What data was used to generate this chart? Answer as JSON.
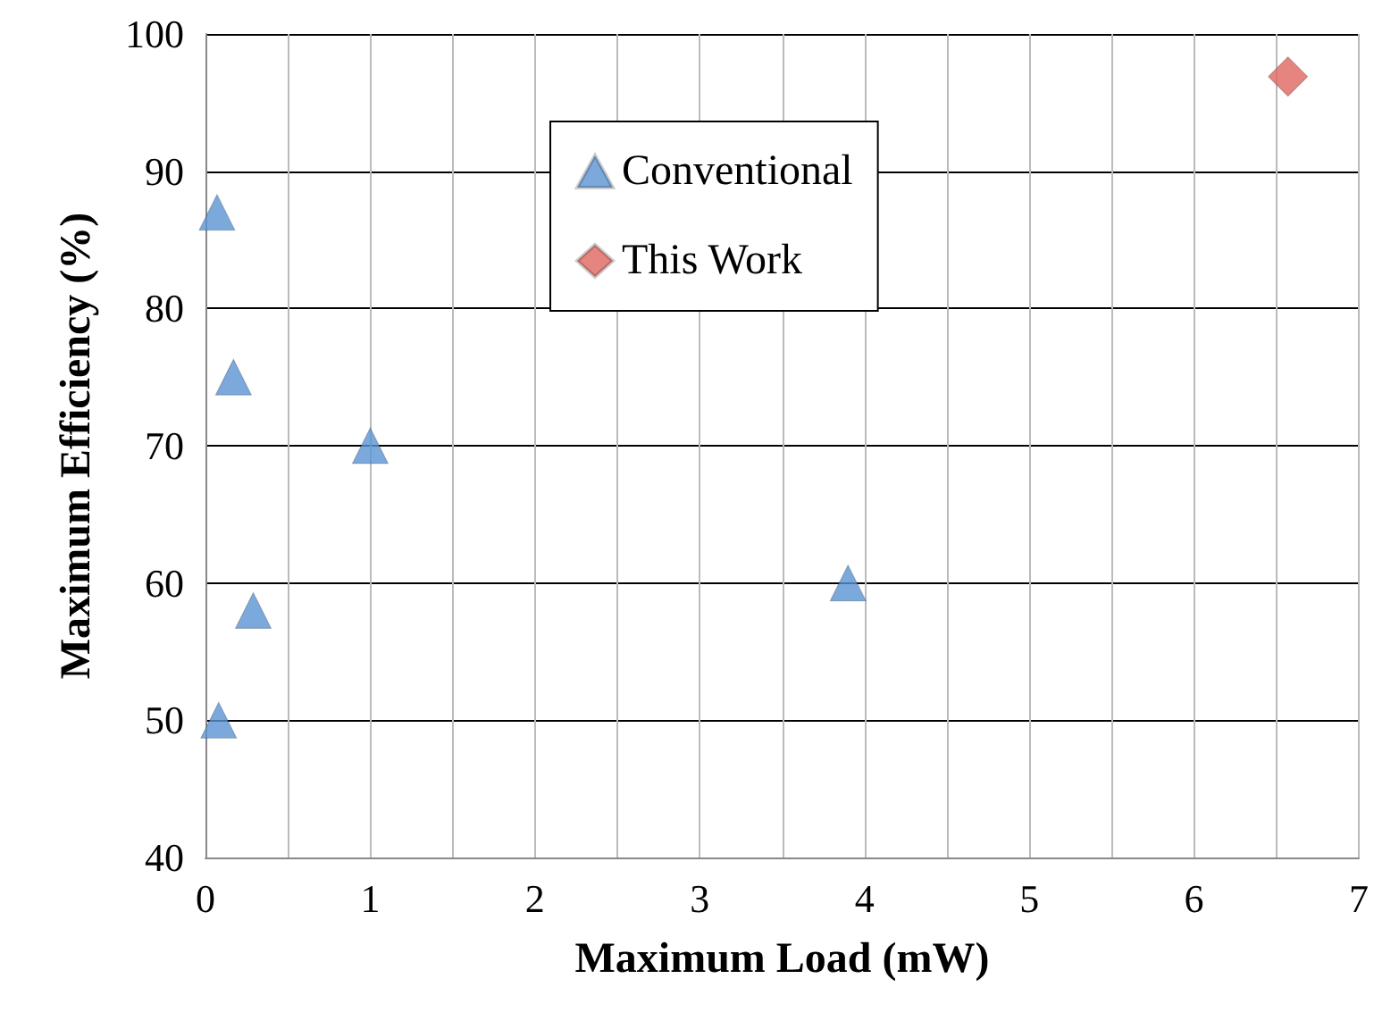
{
  "chart_data": {
    "type": "scatter",
    "xlabel": "Maximum Load (mW)",
    "ylabel": "Maximum Efficiency (%)",
    "series": [
      {
        "name": "Conventional",
        "color": "#5b93d3",
        "marker": "triangle",
        "x": [
          0.07,
          0.17,
          1.0,
          0.29,
          0.08,
          3.9
        ],
        "values": [
          87,
          75,
          70,
          58,
          50,
          60
        ]
      },
      {
        "name": "This Work",
        "color": "#e0675f",
        "marker": "diamond",
        "x": [
          6.57
        ],
        "values": [
          96.9
        ]
      }
    ],
    "xlim": [
      0,
      7
    ],
    "xticks": [
      0,
      {
        "value": 0.5,
        "label": null
      },
      1,
      {
        "value": 1.5,
        "label": null
      },
      2,
      {
        "value": 2.5,
        "label": null
      },
      3,
      {
        "value": 3.5,
        "label": null
      },
      4,
      {
        "value": 4.5,
        "label": null
      },
      5,
      {
        "value": 5.5,
        "label": null
      },
      6,
      {
        "value": 6.5,
        "label": null
      },
      7
    ],
    "ylim": [
      40,
      100
    ],
    "yticks": [
      40,
      50,
      60,
      70,
      80,
      90,
      100
    ],
    "grid": true,
    "legend": "top"
  }
}
